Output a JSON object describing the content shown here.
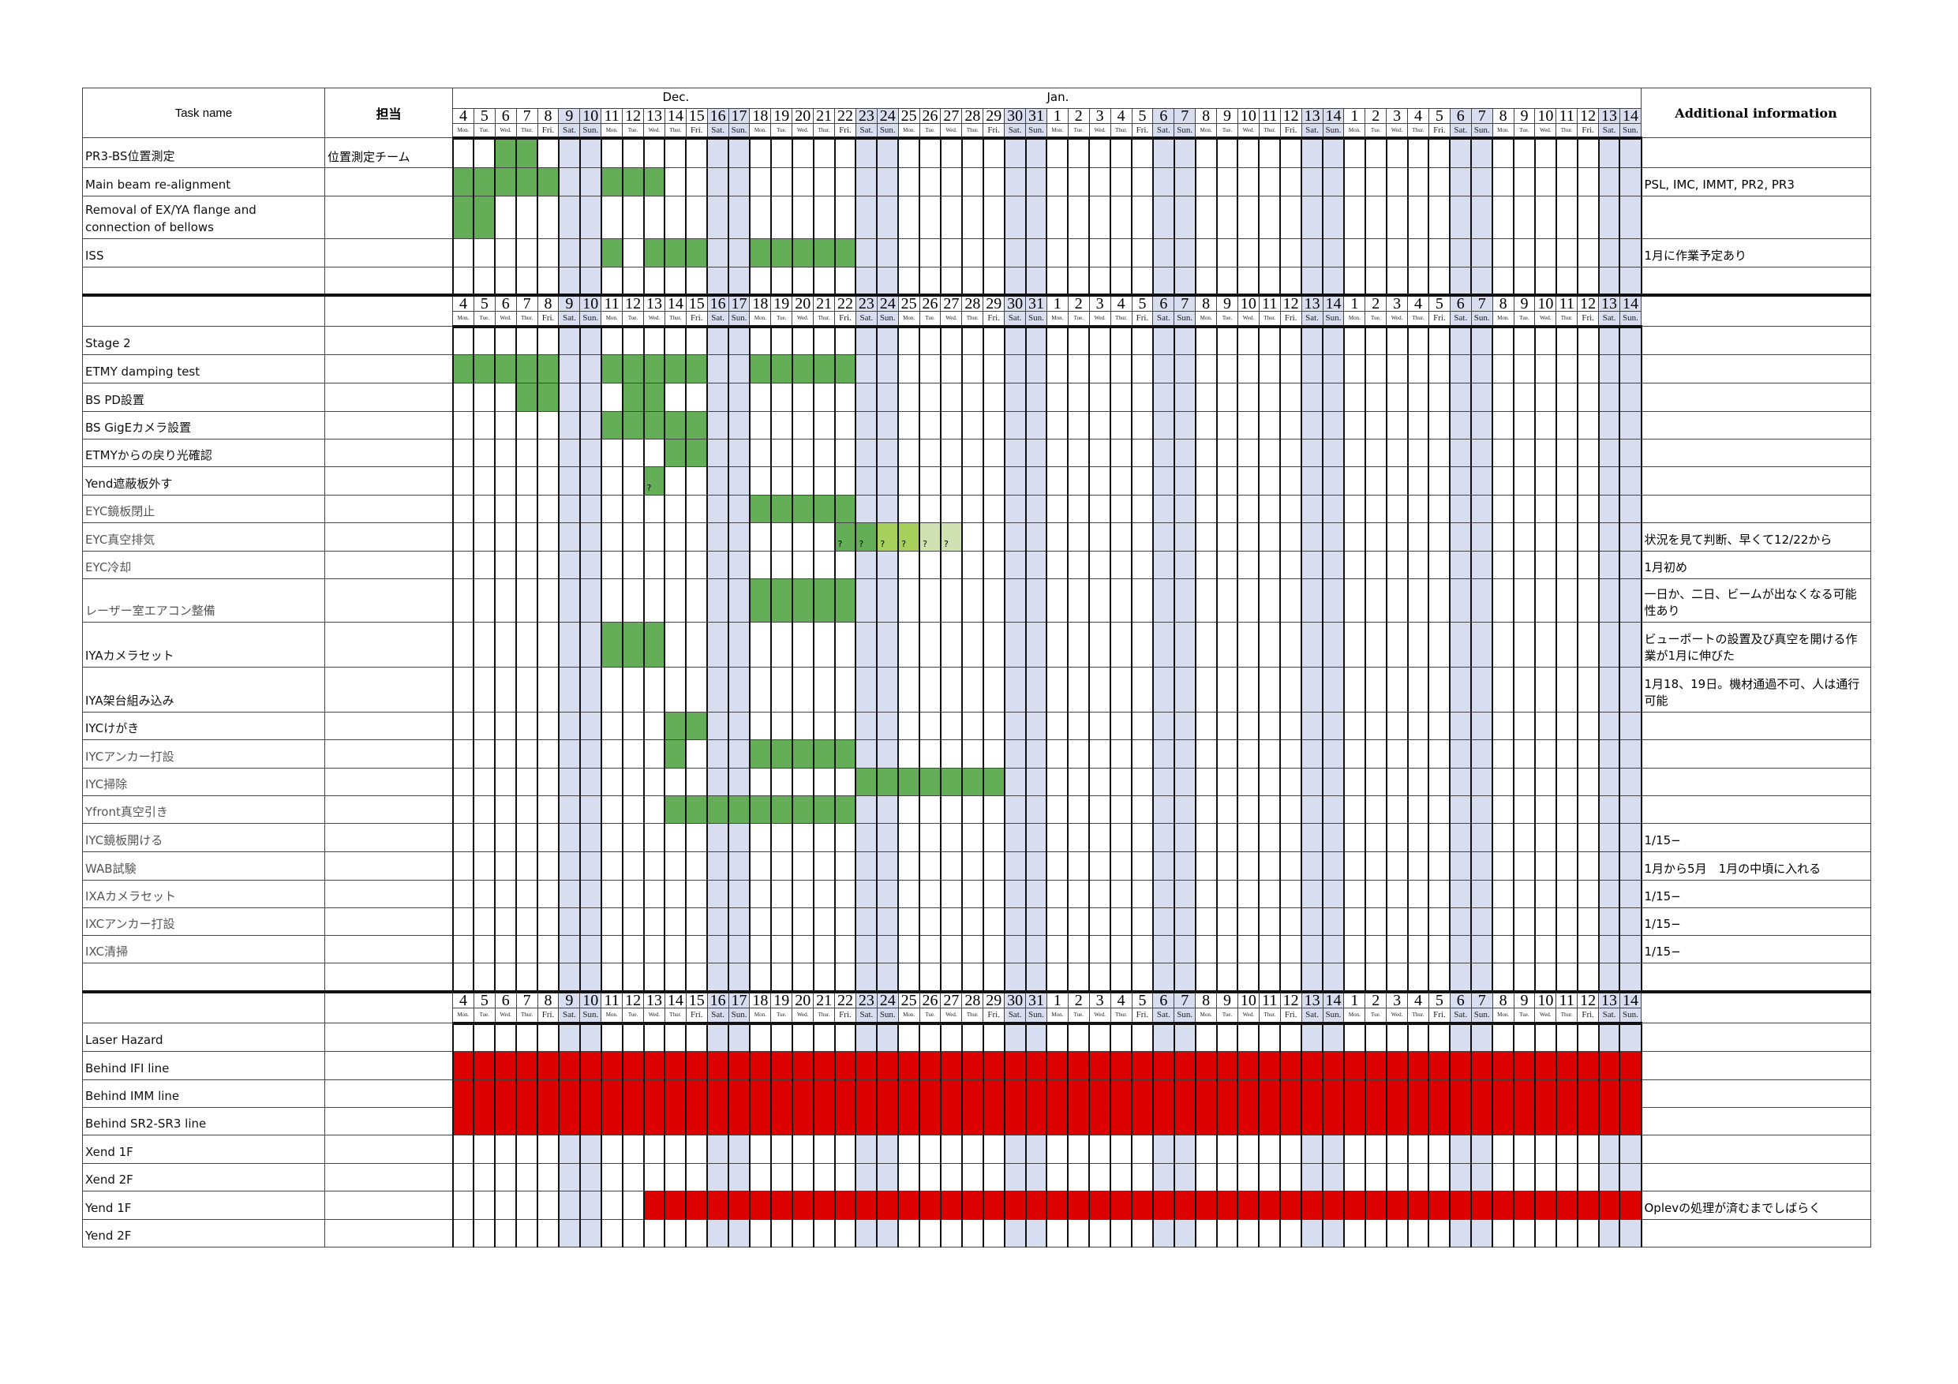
{
  "header": {
    "task_col": "Task name",
    "owner_col": "担当",
    "info_col": "Additional information",
    "months": [
      {
        "label": "Dec.",
        "center_col": 10.5
      },
      {
        "label": "Jan.",
        "center_col": 28.5
      }
    ]
  },
  "days": [
    {
      "d": "4",
      "wd": "Mon."
    },
    {
      "d": "5",
      "wd": "Tue."
    },
    {
      "d": "6",
      "wd": "Wed."
    },
    {
      "d": "7",
      "wd": "Thur."
    },
    {
      "d": "8",
      "wd": "Fri."
    },
    {
      "d": "9",
      "wd": "Sat."
    },
    {
      "d": "10",
      "wd": "Sun."
    },
    {
      "d": "11",
      "wd": "Mon."
    },
    {
      "d": "12",
      "wd": "Tue."
    },
    {
      "d": "13",
      "wd": "Wed."
    },
    {
      "d": "14",
      "wd": "Thur."
    },
    {
      "d": "15",
      "wd": "Fri."
    },
    {
      "d": "16",
      "wd": "Sat."
    },
    {
      "d": "17",
      "wd": "Sun."
    },
    {
      "d": "18",
      "wd": "Mon."
    },
    {
      "d": "19",
      "wd": "Tue."
    },
    {
      "d": "20",
      "wd": "Wed."
    },
    {
      "d": "21",
      "wd": "Thur."
    },
    {
      "d": "22",
      "wd": "Fri."
    },
    {
      "d": "23",
      "wd": "Sat."
    },
    {
      "d": "24",
      "wd": "Sun."
    },
    {
      "d": "25",
      "wd": "Mon."
    },
    {
      "d": "26",
      "wd": "Tue."
    },
    {
      "d": "27",
      "wd": "Wed."
    },
    {
      "d": "28",
      "wd": "Thur."
    },
    {
      "d": "29",
      "wd": "Fri."
    },
    {
      "d": "30",
      "wd": "Sat."
    },
    {
      "d": "31",
      "wd": "Sun."
    },
    {
      "d": "1",
      "wd": "Mon."
    },
    {
      "d": "2",
      "wd": "Tue."
    },
    {
      "d": "3",
      "wd": "Wed."
    },
    {
      "d": "4",
      "wd": "Thur."
    },
    {
      "d": "5",
      "wd": "Fri."
    },
    {
      "d": "6",
      "wd": "Sat."
    },
    {
      "d": "7",
      "wd": "Sun."
    },
    {
      "d": "8",
      "wd": "Mon."
    },
    {
      "d": "9",
      "wd": "Tue."
    },
    {
      "d": "10",
      "wd": "Wed."
    },
    {
      "d": "11",
      "wd": "Thur."
    },
    {
      "d": "12",
      "wd": "Fri."
    },
    {
      "d": "13",
      "wd": "Sat."
    },
    {
      "d": "14",
      "wd": "Sun."
    },
    {
      "d": "1",
      "wd": "Mon."
    },
    {
      "d": "2",
      "wd": "Tue."
    },
    {
      "d": "3",
      "wd": "Wed."
    },
    {
      "d": "4",
      "wd": "Thur."
    },
    {
      "d": "5",
      "wd": "Fri."
    },
    {
      "d": "6",
      "wd": "Sat."
    },
    {
      "d": "7",
      "wd": "Sun."
    },
    {
      "d": "8",
      "wd": "Mon."
    },
    {
      "d": "9",
      "wd": "Tue."
    },
    {
      "d": "10",
      "wd": "Wed."
    },
    {
      "d": "11",
      "wd": "Thur."
    },
    {
      "d": "12",
      "wd": "Fri."
    },
    {
      "d": "13",
      "wd": "Sat."
    },
    {
      "d": "14",
      "wd": "Sun."
    }
  ],
  "colors": {
    "green": "#63ae56",
    "lightgreen": "#a6cf5c",
    "palegreen": "#d0e2b2",
    "red": "#dc0000",
    "weekend": "#d9ddf0",
    "gray_text": "#555555"
  },
  "sections": [
    {
      "rows": [
        {
          "task": "PR3-BS位置測定",
          "owner": "位置測定チーム",
          "info": "",
          "marks": [
            {
              "from": 2,
              "to": 3,
              "color": "green"
            }
          ]
        },
        {
          "task": "Main beam re-alignment",
          "owner": "",
          "info": "PSL, IMC, IMMT, PR2, PR3",
          "marks": [
            {
              "from": 0,
              "to": 4,
              "color": "green"
            },
            {
              "from": 7,
              "to": 9,
              "color": "green"
            }
          ]
        },
        {
          "task": "Removal of EX/YA flange and connection of bellows",
          "owner": "",
          "info": "",
          "marks": [
            {
              "from": 0,
              "to": 1,
              "color": "green"
            }
          ]
        },
        {
          "task": "ISS",
          "owner": "",
          "info": "1月に作業予定あり",
          "marks": [
            {
              "from": 7,
              "to": 7,
              "color": "green"
            },
            {
              "from": 9,
              "to": 11,
              "color": "green"
            },
            {
              "from": 14,
              "to": 18,
              "color": "green"
            }
          ]
        },
        {
          "task": "",
          "owner": "",
          "info": "",
          "marks": []
        }
      ]
    },
    {
      "rows": [
        {
          "task": "Stage 2",
          "owner": "",
          "info": "",
          "marks": []
        },
        {
          "task": "ETMY damping test",
          "owner": "",
          "info": "",
          "marks": [
            {
              "from": 0,
              "to": 4,
              "color": "green"
            },
            {
              "from": 7,
              "to": 11,
              "color": "green"
            },
            {
              "from": 14,
              "to": 18,
              "color": "green"
            }
          ]
        },
        {
          "task": "BS PD設置",
          "owner": "",
          "info": "",
          "marks": [
            {
              "from": 3,
              "to": 4,
              "color": "green"
            },
            {
              "from": 8,
              "to": 9,
              "color": "green"
            }
          ]
        },
        {
          "task": "BS GigEカメラ設置",
          "owner": "",
          "info": "",
          "marks": [
            {
              "from": 7,
              "to": 11,
              "color": "green"
            }
          ]
        },
        {
          "task": "ETMYからの戻り光確認",
          "owner": "",
          "info": "",
          "marks": [
            {
              "from": 10,
              "to": 11,
              "color": "green"
            }
          ]
        },
        {
          "task": "Yend遮蔽板外す",
          "owner": "",
          "info": "",
          "marks": [
            {
              "from": 9,
              "to": 9,
              "color": "green",
              "text": "?"
            }
          ]
        },
        {
          "task": "EYC鏡板閉止",
          "gray": true,
          "owner": "",
          "info": "",
          "marks": [
            {
              "from": 14,
              "to": 18,
              "color": "green"
            }
          ]
        },
        {
          "task": "EYC真空排気",
          "gray": true,
          "owner": "",
          "info": "状況を見て判断、早くて12/22から",
          "marks": [
            {
              "from": 18,
              "to": 19,
              "color": "green",
              "text": "?"
            },
            {
              "from": 20,
              "to": 21,
              "color": "lightgreen",
              "text": "?"
            },
            {
              "from": 22,
              "to": 23,
              "color": "palegreen",
              "text": "?"
            }
          ]
        },
        {
          "task": "EYC冷却",
          "gray": true,
          "owner": "",
          "info": "1月初め",
          "marks": []
        },
        {
          "task": "レーザー室エアコン整備",
          "gray": true,
          "owner": "",
          "info": "一日か、二日、ビームが出なくなる可能性あり",
          "marks": [
            {
              "from": 14,
              "to": 18,
              "color": "green"
            }
          ]
        },
        {
          "task": "IYAカメラセット",
          "owner": "",
          "info": "ビューポートの設置及び真空を開ける作業が1月に伸びた",
          "marks": [
            {
              "from": 7,
              "to": 9,
              "color": "green"
            }
          ]
        },
        {
          "task": "IYA架台組み込み",
          "owner": "",
          "info": "1月18、19日。機材通過不可、人は通行可能",
          "marks": []
        },
        {
          "task": "IYCけがき",
          "owner": "",
          "info": "",
          "marks": [
            {
              "from": 10,
              "to": 11,
              "color": "green"
            }
          ]
        },
        {
          "task": "IYCアンカー打設",
          "gray": true,
          "owner": "",
          "info": "",
          "marks": [
            {
              "from": 10,
              "to": 10,
              "color": "green"
            },
            {
              "from": 14,
              "to": 18,
              "color": "green"
            }
          ]
        },
        {
          "task": "IYC掃除",
          "gray": true,
          "owner": "",
          "info": "",
          "marks": [
            {
              "from": 19,
              "to": 25,
              "color": "green"
            }
          ]
        },
        {
          "task": "Yfront真空引き",
          "gray": true,
          "owner": "",
          "info": "",
          "marks": [
            {
              "from": 10,
              "to": 18,
              "color": "green"
            }
          ]
        },
        {
          "task": "IYC鏡板開ける",
          "gray": true,
          "owner": "",
          "info": "1/15−",
          "marks": []
        },
        {
          "task": "WAB試験",
          "gray": true,
          "owner": "",
          "info": "1月から5月　1月の中頃に入れる",
          "marks": []
        },
        {
          "task": "IXAカメラセット",
          "gray": true,
          "owner": "",
          "info": "1/15−",
          "marks": []
        },
        {
          "task": "IXCアンカー打設",
          "gray": true,
          "owner": "",
          "info": "1/15−",
          "marks": []
        },
        {
          "task": "IXC清掃",
          "gray": true,
          "owner": "",
          "info": "1/15−",
          "marks": []
        },
        {
          "task": "",
          "owner": "",
          "info": "",
          "marks": []
        }
      ]
    },
    {
      "rows": [
        {
          "task": "Laser Hazard",
          "owner": "",
          "info": "",
          "marks": []
        },
        {
          "task": "Behind IFI line",
          "owner": "",
          "info": "",
          "marks": [
            {
              "from": 0,
              "to": 55,
              "color": "red"
            }
          ]
        },
        {
          "task": "Behind IMM line",
          "owner": "",
          "info": "",
          "marks": [
            {
              "from": 0,
              "to": 55,
              "color": "red"
            }
          ]
        },
        {
          "task": "Behind SR2-SR3 line",
          "owner": "",
          "info": "",
          "marks": [
            {
              "from": 0,
              "to": 55,
              "color": "red"
            }
          ]
        },
        {
          "task": "Xend 1F",
          "owner": "",
          "info": "",
          "marks": []
        },
        {
          "task": "Xend 2F",
          "owner": "",
          "info": "",
          "marks": []
        },
        {
          "task": "Yend 1F",
          "owner": "",
          "info": "Oplevの処理が済むまでしばらく",
          "marks": [
            {
              "from": 9,
              "to": 55,
              "color": "red"
            }
          ]
        },
        {
          "task": "Yend 2F",
          "owner": "",
          "info": "",
          "marks": []
        }
      ]
    }
  ]
}
